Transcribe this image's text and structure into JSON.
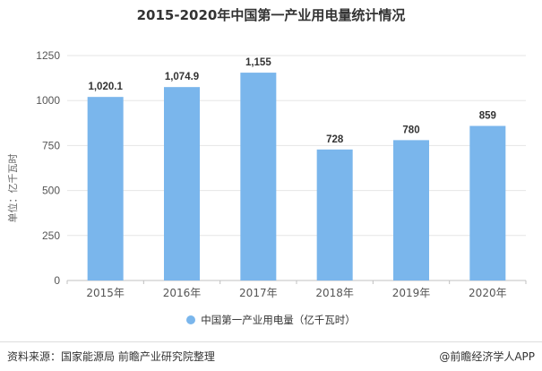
{
  "title": "2015-2020年中国第一产业用电量统计情况",
  "ylabel": "单位：亿千瓦时",
  "legend_label": "中国第一产业用电量（亿千瓦时）",
  "source": "资料来源：国家能源局 前瞻产业研究院整理",
  "brand": "@前瞻经济学人APP",
  "colors": {
    "bar": "#7ab6ec",
    "grid": "#e6e6e6",
    "axis": "#c0c0c0"
  },
  "chart_data": {
    "type": "bar",
    "categories": [
      "2015年",
      "2016年",
      "2017年",
      "2018年",
      "2019年",
      "2020年"
    ],
    "values": [
      1020.1,
      1074.9,
      1155,
      728,
      780,
      859
    ],
    "value_labels": [
      "1,020.1",
      "1,074.9",
      "1,155",
      "728",
      "780",
      "859"
    ],
    "ylim": [
      0,
      1250
    ],
    "yticks": [
      0,
      250,
      500,
      750,
      1000,
      1250
    ],
    "ytick_labels": [
      "0",
      "250",
      "500",
      "750",
      "1000",
      "1250"
    ],
    "grid": true,
    "legend_position": "bottom"
  }
}
